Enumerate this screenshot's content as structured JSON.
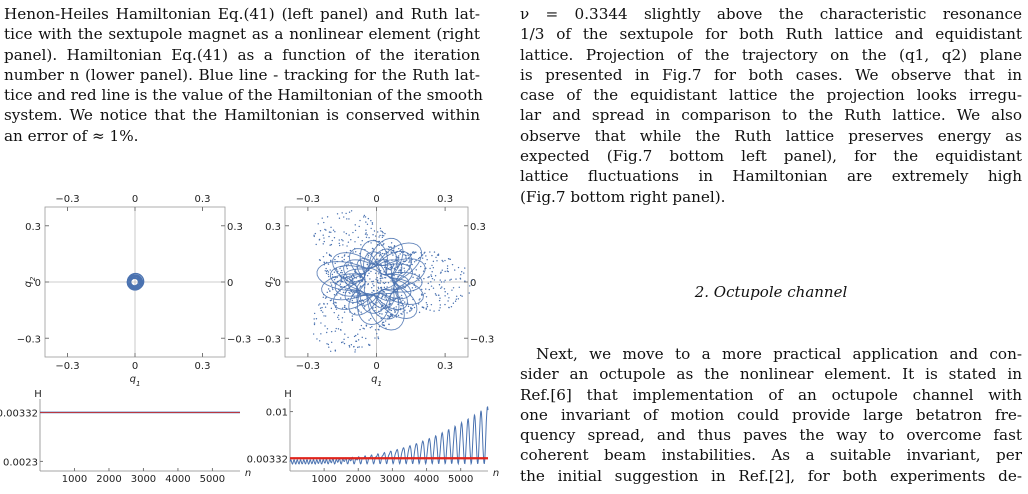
{
  "caption_lines": [
    "Henon-Heiles Hamiltonian Eq.(41) (left panel) and Ruth lat-",
    "tice with the sextupole magnet as a nonlinear element (right",
    "panel).  Hamiltonian Eq.(41) as a function of the iteration",
    "number n (lower panel). Blue line - tracking for the Ruth lat-",
    "tice and red line is the value of the Hamiltonian of the smooth",
    "system.  We notice that the Hamiltonian is conserved within",
    "an error of ≈ 1%."
  ],
  "right_para1_lines": [
    "ν  =  0.3344 slightly above the characteristic resonance",
    "1/3 of the sextupole for both Ruth lattice and equidistant",
    "lattice. Projection of the trajectory on the (q1, q2) plane",
    "is presented in Fig.7 for both cases. We observe that in",
    "case of the equidistant lattice the projection looks irregu-",
    "lar and spread in comparison to the Ruth lattice. We also",
    "observe that while the Ruth lattice preserves energy as",
    "expected (Fig.7 bottom left panel), for the equidistant",
    "lattice fluctuations in Hamiltonian are extremely high",
    "(Fig.7 bottom right panel)."
  ],
  "section_title": "2.   Octupole channel",
  "right_para2_lines": [
    "Next, we move to a more practical application and con-",
    "sider an octupole as the nonlinear element. It is stated in",
    "Ref.[6] that implementation of an octupole channel with",
    "one invariant of motion could provide large betatron fre-",
    "quency spread, and thus paves the way to overcome fast",
    "coherent beam instabilities. As a suitable invariant, per",
    "the initial suggestion in Ref.[2], for both experiments de-"
  ],
  "colors": {
    "tracking": "#4a72b0",
    "hamiltonian": "#e0241b"
  },
  "chart_data": [
    {
      "type": "scatter",
      "panel": "top-left",
      "xlabel": "q1",
      "ylabel": "q2",
      "xlim": [
        -0.4,
        0.4
      ],
      "ylim": [
        -0.4,
        0.4
      ],
      "xticks": [
        -0.3,
        0,
        0.3
      ],
      "yticks": [
        -0.3,
        0,
        0.3
      ],
      "tick_labels": [
        "−0.3",
        "0",
        "0.3"
      ],
      "ring": {
        "center": [
          0,
          0
        ],
        "inner_radius": 0.018,
        "outer_radius": 0.036
      }
    },
    {
      "type": "scatter",
      "panel": "top-right",
      "xlabel": "q1",
      "ylabel": "q2",
      "xlim": [
        -0.4,
        0.4
      ],
      "ylim": [
        -0.4,
        0.4
      ],
      "xticks": [
        -0.3,
        0,
        0.3
      ],
      "yticks": [
        -0.3,
        0,
        0.3
      ],
      "tick_labels": [
        "−0.3",
        "0",
        "0.3"
      ],
      "cloud": {
        "center": [
          0,
          0
        ],
        "extent": 0.33,
        "lobes": 3
      }
    },
    {
      "type": "line",
      "panel": "bottom-left",
      "xlabel": "n",
      "ylabel": "H",
      "xlim": [
        0,
        5800
      ],
      "ylim": [
        0.0021,
        0.0036
      ],
      "xticks": [
        1000,
        2000,
        3000,
        4000,
        5000
      ],
      "yticks": [
        0.0023,
        0.00332
      ],
      "ytick_labels": [
        "0.0023",
        "0.00332"
      ],
      "series": [
        {
          "values_const": 0.00332
        },
        {
          "values_const": 0.00332
        }
      ]
    },
    {
      "type": "line",
      "panel": "bottom-right",
      "xlabel": "n",
      "ylabel": "H",
      "xlim": [
        0,
        5800
      ],
      "ylim": [
        0.0015,
        0.0118
      ],
      "xticks": [
        1000,
        2000,
        3000,
        4000,
        5000
      ],
      "yticks": [
        0.00332,
        0.01
      ],
      "ytick_labels": [
        "0.00332",
        "0.01"
      ],
      "series": [
        {
          "oscillation_base": 0.0025,
          "max_amplitude": 0.0108
        },
        {
          "values_const": 0.00332
        }
      ]
    }
  ]
}
